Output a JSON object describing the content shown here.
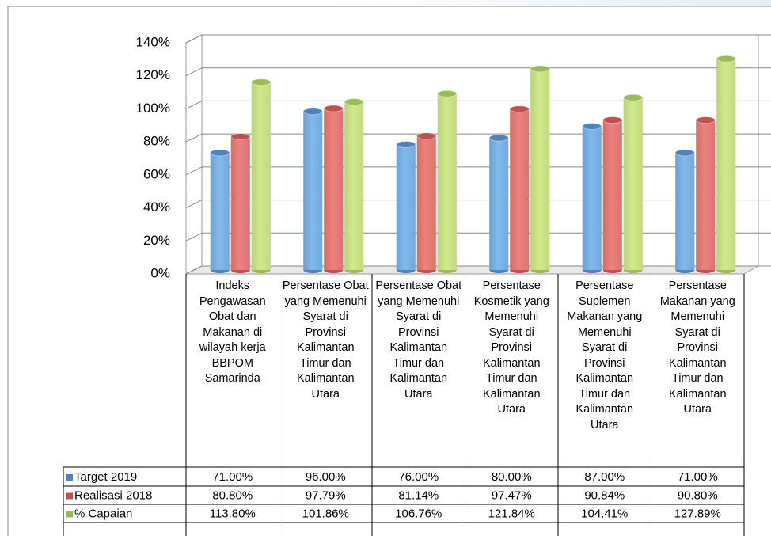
{
  "chart_data": {
    "type": "bar",
    "categories": [
      "Indeks Pengawasan Obat dan Makanan di wilayah kerja BBPOM Samarinda",
      "Persentase Obat yang Memenuhi Syarat di Provinsi Kalimantan Timur dan Kalimantan Utara",
      "Persentase Obat yang Memenuhi Syarat di Provinsi Kalimantan Timur dan Kalimantan Utara",
      "Persentase Kosmetik yang Memenuhi Syarat di Provinsi Kalimantan Timur dan Kalimantan Utara",
      "Persentase Suplemen Makanan yang Memenuhi Syarat di Provinsi Kalimantan Timur dan Kalimantan Utara",
      "Persentase Makanan yang Memenuhi Syarat di Provinsi Kalimantan Timur dan Kalimantan Utara"
    ],
    "series": [
      {
        "name": "Target 2019",
        "color": "#4f81bd",
        "values": [
          71,
          96,
          76,
          80,
          87,
          71
        ],
        "value_labels": [
          "71.00%",
          "96.00%",
          "76.00%",
          "80.00%",
          "87.00%",
          "71.00%"
        ]
      },
      {
        "name": "Realisasi 2018",
        "color": "#c0504d",
        "values": [
          80.8,
          97.79,
          81.14,
          97.47,
          90.84,
          90.8
        ],
        "value_labels": [
          "80.80%",
          "97.79%",
          "81.14%",
          "97.47%",
          "90.84%",
          "90.80%"
        ]
      },
      {
        "name": "% Capaian",
        "color": "#9bbb59",
        "values": [
          113.8,
          101.86,
          106.76,
          121.84,
          104.41,
          127.89
        ],
        "value_labels": [
          "113.80%",
          "101.86%",
          "106.76%",
          "121.84%",
          "104.41%",
          "127.89%"
        ]
      }
    ],
    "ylim": [
      0,
      140
    ],
    "yticks": [
      {
        "value": 0,
        "label": "0%"
      },
      {
        "value": 20,
        "label": "20%"
      },
      {
        "value": 40,
        "label": "40%"
      },
      {
        "value": 60,
        "label": "60%"
      },
      {
        "value": 80,
        "label": "80%"
      },
      {
        "value": 100,
        "label": "100%"
      },
      {
        "value": 120,
        "label": "120%"
      },
      {
        "value": 140,
        "label": "140%"
      }
    ],
    "grid": true
  }
}
